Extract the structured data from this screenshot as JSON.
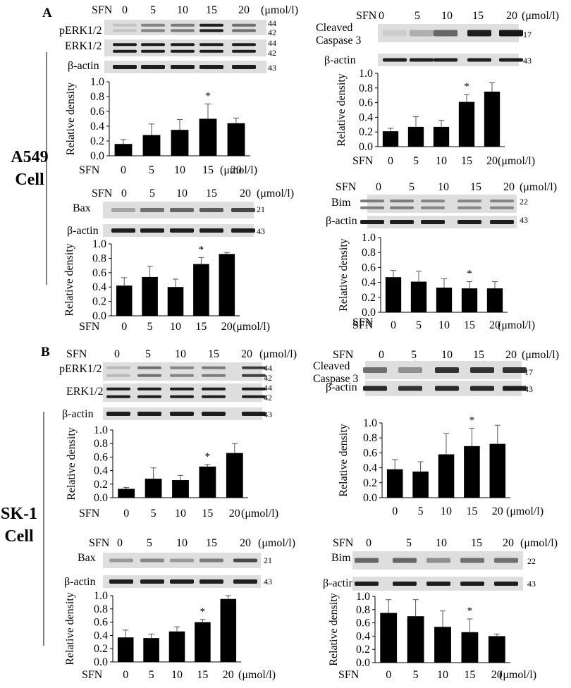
{
  "figure": {
    "sections": [
      {
        "letter": "A",
        "cell_label": [
          "A549",
          "Cell"
        ]
      },
      {
        "letter": "B",
        "cell_label": [
          "SK-1",
          "Cell"
        ]
      }
    ],
    "sfn_label": "SFN",
    "unit": "(μmol/l)",
    "ylabel": "Relative density",
    "loading_label": "β-actin",
    "sig_marker": "*",
    "doses": [
      "0",
      "5",
      "10",
      "15",
      "20"
    ]
  },
  "chart_data": [
    {
      "id": "A-pERK",
      "type": "bar",
      "title": "pERK1/2 (A549)",
      "proteins": [
        "pERK1/2",
        "ERK1/2",
        "β-actin"
      ],
      "mw": [
        "44",
        "42",
        "44",
        "42",
        "43"
      ],
      "categories": [
        "0",
        "5",
        "10",
        "15",
        "20"
      ],
      "values": [
        0.16,
        0.28,
        0.35,
        0.5,
        0.44
      ],
      "errors": [
        0.06,
        0.15,
        0.14,
        0.2,
        0.07
      ],
      "significant": [
        false,
        false,
        false,
        true,
        false
      ],
      "xlabel": "SFN (μmol/l)",
      "ylabel": "Relative density",
      "ylim": [
        0,
        1
      ],
      "yticks": [
        "0.0",
        "0.2",
        "0.4",
        "0.6",
        "0.8",
        "1.0"
      ]
    },
    {
      "id": "A-casp3",
      "type": "bar",
      "title": "Cleaved Caspase 3 (A549)",
      "proteins": [
        "Cleaved",
        "Caspase 3",
        "β-actin"
      ],
      "mw": [
        "17",
        "43"
      ],
      "categories": [
        "0",
        "5",
        "10",
        "15",
        "20"
      ],
      "values": [
        0.21,
        0.27,
        0.27,
        0.61,
        0.75
      ],
      "errors": [
        0.04,
        0.14,
        0.09,
        0.1,
        0.12
      ],
      "significant": [
        false,
        false,
        false,
        true,
        false
      ],
      "xlabel": "SFN (μmol/l)",
      "ylabel": "Relative density",
      "ylim": [
        0,
        1
      ],
      "yticks": [
        "0.0",
        "0.2",
        "0.4",
        "0.6",
        "0.8",
        "1.0"
      ]
    },
    {
      "id": "A-bax",
      "type": "bar",
      "title": "Bax (A549)",
      "proteins": [
        "Bax",
        "β-actin"
      ],
      "mw": [
        "21",
        "43"
      ],
      "categories": [
        "0",
        "5",
        "10",
        "15",
        "20"
      ],
      "values": [
        0.42,
        0.54,
        0.4,
        0.72,
        0.86
      ],
      "errors": [
        0.11,
        0.15,
        0.11,
        0.09,
        0.02
      ],
      "significant": [
        false,
        false,
        false,
        true,
        false
      ],
      "xlabel": "SFN (μmol/l)",
      "ylabel": "Relative density",
      "ylim": [
        0,
        1
      ],
      "yticks": [
        "0.0",
        "0.2",
        "0.4",
        "0.6",
        "0.8",
        "1.0"
      ]
    },
    {
      "id": "A-bim",
      "type": "bar",
      "title": "Bim (A549)",
      "proteins": [
        "Bim",
        "β-actin"
      ],
      "mw": [
        "22",
        "43"
      ],
      "categories": [
        "0",
        "5",
        "10",
        "15",
        "20"
      ],
      "values": [
        0.47,
        0.41,
        0.33,
        0.32,
        0.32
      ],
      "errors": [
        0.09,
        0.14,
        0.12,
        0.09,
        0.09
      ],
      "significant": [
        false,
        false,
        false,
        true,
        false
      ],
      "xlabel": "SFN (μmol/l)",
      "ylabel": "Relative density",
      "ylim": [
        0,
        1
      ],
      "yticks": [
        "0.0",
        "0.2",
        "0.4",
        "0.6",
        "0.8",
        "1.0"
      ]
    },
    {
      "id": "B-pERK",
      "type": "bar",
      "title": "pERK1/2 (SK-1)",
      "proteins": [
        "pERK1/2",
        "ERK1/2",
        "β-actin"
      ],
      "mw": [
        "44",
        "42",
        "44",
        "42",
        "43"
      ],
      "categories": [
        "0",
        "5",
        "10",
        "15",
        "20"
      ],
      "values": [
        0.13,
        0.28,
        0.26,
        0.46,
        0.66
      ],
      "errors": [
        0.02,
        0.16,
        0.07,
        0.03,
        0.14
      ],
      "significant": [
        false,
        false,
        false,
        true,
        false
      ],
      "xlabel": "SFN (μmol/l)",
      "ylabel": "Relative density",
      "ylim": [
        0,
        1
      ],
      "yticks": [
        "0.0",
        "0.2",
        "0.4",
        "0.6",
        "0.8",
        "1.0"
      ]
    },
    {
      "id": "B-casp3",
      "type": "bar",
      "title": "Cleaved Caspase 3 (SK-1)",
      "proteins": [
        "Cleaved",
        "Caspase 3",
        "β-actin"
      ],
      "mw": [
        "17",
        "43"
      ],
      "categories": [
        "0",
        "5",
        "10",
        "15",
        "20"
      ],
      "values": [
        0.38,
        0.35,
        0.58,
        0.69,
        0.72
      ],
      "errors": [
        0.13,
        0.13,
        0.28,
        0.24,
        0.25
      ],
      "significant": [
        false,
        false,
        false,
        true,
        false
      ],
      "xlabel": "SFN (μmol/l)",
      "ylabel": "Relative density",
      "ylim": [
        0,
        1
      ],
      "yticks": [
        "0.0",
        "0.2",
        "0.4",
        "0.6",
        "0.8",
        "1.0"
      ]
    },
    {
      "id": "B-bax",
      "type": "bar",
      "title": "Bax (SK-1)",
      "proteins": [
        "Bax",
        "β-actin"
      ],
      "mw": [
        "21",
        "43"
      ],
      "categories": [
        "0",
        "5",
        "10",
        "15",
        "20"
      ],
      "values": [
        0.37,
        0.36,
        0.46,
        0.6,
        0.95
      ],
      "errors": [
        0.11,
        0.06,
        0.07,
        0.04,
        0.05
      ],
      "significant": [
        false,
        false,
        false,
        true,
        false
      ],
      "xlabel": "SFN (μmol/l)",
      "ylabel": "Relative density",
      "ylim": [
        0,
        1
      ],
      "yticks": [
        "0.0",
        "0.2",
        "0.4",
        "0.6",
        "0.8",
        "1.0"
      ]
    },
    {
      "id": "B-bim",
      "type": "bar",
      "title": "Bim (SK-1)",
      "proteins": [
        "Bim",
        "β-actin"
      ],
      "mw": [
        "22",
        "43"
      ],
      "categories": [
        "0",
        "5",
        "10",
        "15",
        "20"
      ],
      "values": [
        0.75,
        0.7,
        0.54,
        0.46,
        0.4
      ],
      "errors": [
        0.2,
        0.25,
        0.24,
        0.2,
        0.03
      ],
      "significant": [
        false,
        false,
        false,
        true,
        false
      ],
      "xlabel": "SFN (μmol/l)",
      "ylabel": "Relative density",
      "ylim": [
        0,
        1
      ],
      "yticks": [
        "0.0",
        "0.2",
        "0.4",
        "0.6",
        "0.8",
        "1.0"
      ]
    }
  ]
}
